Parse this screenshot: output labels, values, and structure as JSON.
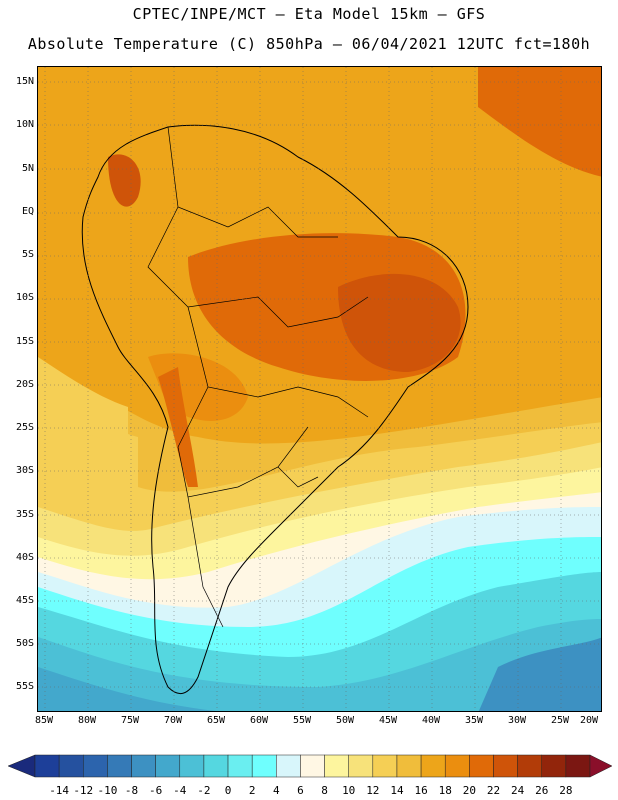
{
  "header": {
    "line1": "CPTEC/INPE/MCT –  Eta Model 15km – GFS",
    "line2": "Absolute Temperature (C) 850hPa – 06/04/2021 12UTC fct=180h"
  },
  "latitude_labels": [
    "15N",
    "10N",
    "5N",
    "EQ",
    "5S",
    "10S",
    "15S",
    "20S",
    "25S",
    "30S",
    "35S",
    "40S",
    "45S",
    "50S",
    "55S"
  ],
  "longitude_labels": [
    "85W",
    "80W",
    "75W",
    "70W",
    "65W",
    "60W",
    "55W",
    "50W",
    "45W",
    "40W",
    "35W",
    "30W",
    "25W",
    "20W"
  ],
  "colorbar": {
    "labels": [
      "-14",
      "-12",
      "-10",
      "-8",
      "-6",
      "-4",
      "-2",
      "0",
      "2",
      "4",
      "6",
      "8",
      "10",
      "12",
      "14",
      "16",
      "18",
      "20",
      "22",
      "24",
      "26",
      "28"
    ],
    "colors": [
      "#1d3f99",
      "#25519f",
      "#2c64ad",
      "#357ab7",
      "#3d91c2",
      "#43a8cc",
      "#4cc0d6",
      "#55d7e0",
      "#6aeef0",
      "#6ffffe",
      "#d8f6fb",
      "#fff7e4",
      "#fdf59e",
      "#f7e27a",
      "#f5cf55",
      "#f0bd3b",
      "#eda51a",
      "#eb8e0f",
      "#e06a08",
      "#cf5409",
      "#b23c08",
      "#92250b",
      "#7b1712"
    ],
    "end_left_color": "#1a2a7c",
    "end_right_color": "#8a0f2a"
  },
  "chart_data": {
    "type": "filled-contour map",
    "variable": "Absolute Temperature (C) 850hPa",
    "units": "C",
    "lon_range": [
      -85,
      -20
    ],
    "lat_range": [
      -57,
      16
    ],
    "levels": [
      -14,
      -12,
      -10,
      -8,
      -6,
      -4,
      -2,
      0,
      2,
      4,
      6,
      8,
      10,
      12,
      14,
      16,
      18,
      20,
      22,
      24,
      26,
      28
    ],
    "regions": [
      {
        "area": "tropical Atlantic / northern South America",
        "approx_temp_c": 18
      },
      {
        "area": "NE Atlantic corner near 15N 25W",
        "approx_temp_c": 22
      },
      {
        "area": "central Brazil (Bahia/Goias)",
        "approx_temp_c": 22
      },
      {
        "area": "southern Brazil / Uruguay",
        "approx_temp_c": 12
      },
      {
        "area": "South Atlantic near 40S 45W",
        "approx_temp_c": 6
      },
      {
        "area": "southern ocean near 50S",
        "approx_temp_c": -2
      }
    ]
  }
}
